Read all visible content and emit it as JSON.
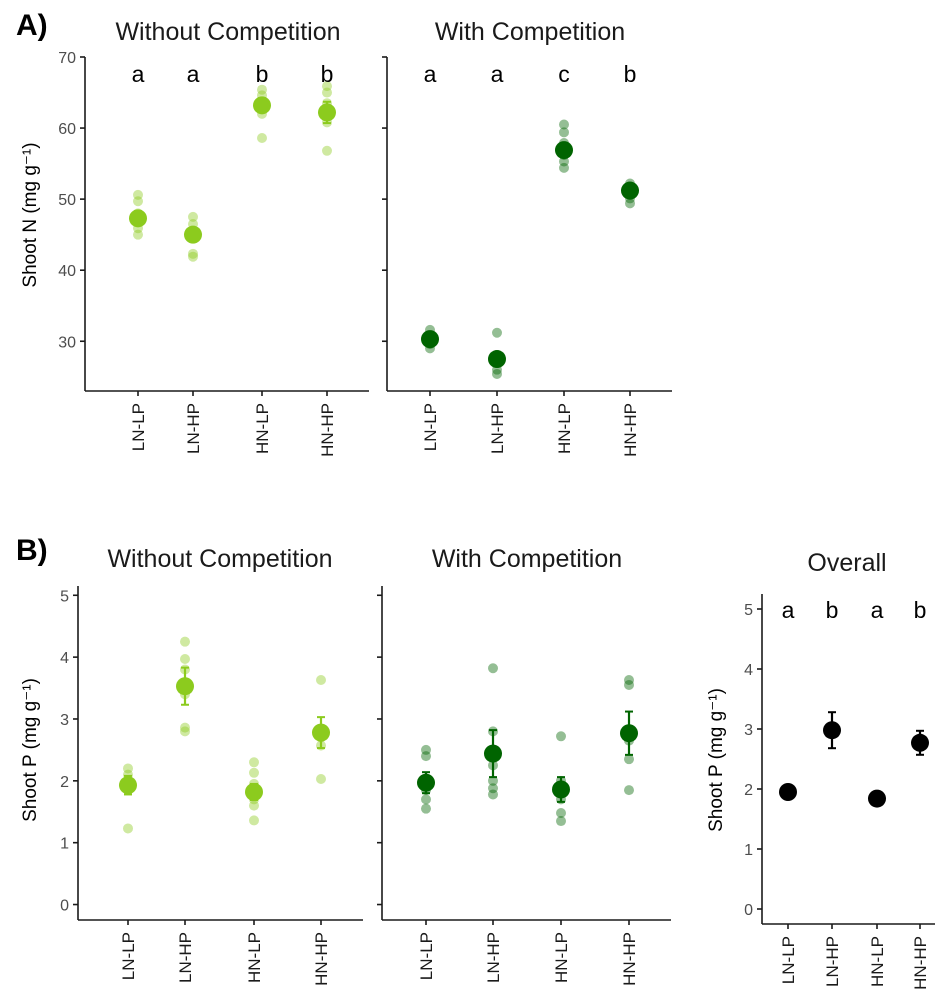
{
  "colors": {
    "without": "#8ccb1e",
    "with": "#006400",
    "overall": "#000000"
  },
  "chart_data": [
    {
      "type": "scatter",
      "panel": "A)",
      "ylabel": "Shoot N (mg g⁻¹)",
      "ylim": [
        23,
        70
      ],
      "yticks": [
        30,
        40,
        50,
        60,
        70
      ],
      "categories": [
        "LN-LP",
        "LN-HP",
        "HN-LP",
        "HN-HP"
      ],
      "facets": [
        {
          "title": "Without Competition",
          "color_key": "without",
          "means": [
            47.3,
            45.0,
            63.2,
            62.2
          ],
          "se": [
            1.0,
            0.9,
            1.0,
            1.5
          ],
          "letters": [
            "a",
            "a",
            "b",
            "b"
          ],
          "points": [
            [
              50.6,
              49.7,
              48.0,
              46.8,
              45.9,
              45.0
            ],
            [
              47.5,
              46.5,
              45.3,
              44.6,
              42.3,
              41.9
            ],
            [
              65.4,
              64.6,
              63.6,
              62.7,
              62.0,
              58.6
            ],
            [
              65.9,
              65.0,
              63.5,
              61.8,
              60.8,
              56.8
            ]
          ]
        },
        {
          "title": "With Competition",
          "color_key": "with",
          "means": [
            30.3,
            27.5,
            56.9,
            51.2
          ],
          "se": [
            0.5,
            0.8,
            0.9,
            0.5
          ],
          "letters": [
            "a",
            "a",
            "c",
            "b"
          ],
          "points": [
            [
              31.6,
              30.8,
              30.2,
              29.6,
              29.0
            ],
            [
              31.2,
              27.8,
              27.1,
              26.0,
              25.4
            ],
            [
              60.5,
              59.4,
              57.9,
              56.2,
              55.3,
              54.4
            ],
            [
              52.2,
              51.8,
              51.2,
              50.6,
              50.1,
              49.4
            ]
          ]
        }
      ]
    },
    {
      "type": "scatter",
      "panel": "B)",
      "ylabel": "Shoot P (mg g⁻¹)",
      "ylim": [
        -0.25,
        5.15
      ],
      "yticks": [
        0,
        1,
        2,
        3,
        4,
        5
      ],
      "categories": [
        "LN-LP",
        "LN-HP",
        "HN-LP",
        "HN-HP"
      ],
      "facets": [
        {
          "title": "Without Competition",
          "color_key": "without",
          "means": [
            1.93,
            3.53,
            1.82,
            2.78
          ],
          "se": [
            0.15,
            0.3,
            0.13,
            0.25
          ],
          "letters": [],
          "points": [
            [
              2.2,
              2.1,
              1.98,
              1.9,
              1.85,
              1.23
            ],
            [
              4.25,
              3.97,
              3.8,
              3.4,
              2.86,
              2.8
            ],
            [
              2.3,
              2.13,
              1.95,
              1.7,
              1.6,
              1.36
            ],
            [
              3.63,
              2.8,
              2.7,
              2.57,
              2.03
            ]
          ]
        },
        {
          "title": "With Competition",
          "color_key": "with",
          "means": [
            1.97,
            2.44,
            1.86,
            2.77
          ],
          "se": [
            0.17,
            0.38,
            0.2,
            0.35
          ],
          "letters": [],
          "points": [
            [
              2.5,
              2.4,
              2.0,
              1.85,
              1.7,
              1.55
            ],
            [
              3.82,
              2.8,
              2.25,
              2.0,
              1.88,
              1.78
            ],
            [
              2.72,
              2.0,
              1.82,
              1.7,
              1.48,
              1.35
            ],
            [
              3.63,
              3.55,
              2.8,
              2.65,
              2.35,
              1.85
            ]
          ]
        }
      ],
      "overall": {
        "title": "Overall",
        "color_key": "overall",
        "ylim": [
          -0.25,
          5.25
        ],
        "yticks": [
          0,
          1,
          2,
          3,
          4,
          5
        ],
        "means": [
          1.95,
          2.98,
          1.84,
          2.77
        ],
        "se": [
          0.05,
          0.3,
          0.05,
          0.2
        ],
        "letters": [
          "a",
          "b",
          "a",
          "b"
        ]
      }
    }
  ]
}
